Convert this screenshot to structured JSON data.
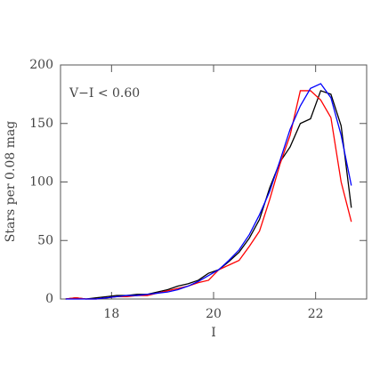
{
  "chart_data": {
    "type": "line",
    "annotation": "V−I < 0.60",
    "x_label": "I",
    "y_label": "Stars per 0.08 mag",
    "x": [
      17.1,
      17.3,
      17.5,
      17.7,
      17.9,
      18.1,
      18.3,
      18.5,
      18.7,
      18.9,
      19.1,
      19.3,
      19.5,
      19.7,
      19.9,
      20.1,
      20.3,
      20.5,
      20.7,
      20.9,
      21.1,
      21.3,
      21.5,
      21.7,
      21.9,
      22.1,
      22.3,
      22.5,
      22.7
    ],
    "series": [
      {
        "color": "#000000",
        "values": [
          0,
          1,
          0,
          1,
          2,
          3,
          3,
          4,
          4,
          6,
          8,
          11,
          13,
          16,
          22,
          25,
          32,
          40,
          52,
          68,
          95,
          117,
          130,
          150,
          154,
          178,
          175,
          148,
          78
        ]
      },
      {
        "color": "#ff0000",
        "values": [
          0,
          1,
          0,
          0,
          1,
          2,
          2,
          3,
          3,
          5,
          7,
          9,
          11,
          14,
          16,
          25,
          29,
          33,
          45,
          58,
          85,
          115,
          140,
          178,
          178,
          170,
          155,
          100,
          66
        ]
      },
      {
        "color": "#0000ff",
        "values": [
          0,
          0,
          0,
          0,
          1,
          2,
          3,
          3,
          4,
          5,
          6,
          8,
          11,
          15,
          20,
          25,
          33,
          42,
          55,
          72,
          92,
          118,
          145,
          165,
          180,
          184,
          172,
          140,
          97
        ]
      }
    ],
    "xlim": [
      17,
      23
    ],
    "ylim": [
      0,
      200
    ],
    "xticks": [
      18,
      20,
      22
    ],
    "yticks": [
      0,
      50,
      100,
      150,
      200
    ]
  }
}
